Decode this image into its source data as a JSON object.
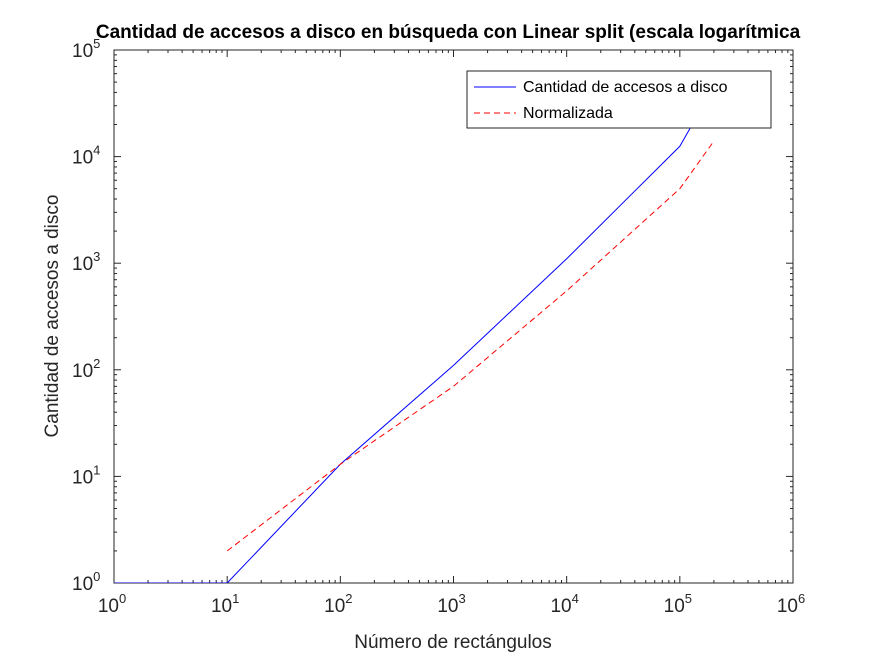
{
  "chart_data": {
    "type": "line",
    "title": "Cantidad de accesos a disco en búsqueda con Linear split (escala logarítmica",
    "xlabel": "Número de rectángulos",
    "ylabel": "Cantidad de accesos a disco",
    "xscale": "log",
    "yscale": "log",
    "xlim": [
      1,
      1000000
    ],
    "ylim": [
      1,
      100000
    ],
    "xticks": [
      {
        "base": "10",
        "exp": "0"
      },
      {
        "base": "10",
        "exp": "1"
      },
      {
        "base": "10",
        "exp": "2"
      },
      {
        "base": "10",
        "exp": "3"
      },
      {
        "base": "10",
        "exp": "4"
      },
      {
        "base": "10",
        "exp": "5"
      },
      {
        "base": "10",
        "exp": "6"
      }
    ],
    "yticks": [
      {
        "base": "10",
        "exp": "0"
      },
      {
        "base": "10",
        "exp": "1"
      },
      {
        "base": "10",
        "exp": "2"
      },
      {
        "base": "10",
        "exp": "3"
      },
      {
        "base": "10",
        "exp": "4"
      },
      {
        "base": "10",
        "exp": "5"
      }
    ],
    "grid": false,
    "legend_position": "top-right",
    "series": [
      {
        "name": "Cantidad de accesos a disco",
        "color": "#0000ff",
        "style": "solid",
        "x": [
          1,
          10,
          100,
          1000,
          10000,
          100000,
          145000
        ],
        "y": [
          1,
          1,
          13,
          110,
          1100,
          12500,
          25000
        ]
      },
      {
        "name": "Normalizada",
        "color": "#ff0000",
        "style": "dashed",
        "x": [
          10,
          100,
          1000,
          10000,
          100000,
          200000
        ],
        "y": [
          2,
          13,
          70,
          550,
          5000,
          14000
        ]
      }
    ]
  }
}
